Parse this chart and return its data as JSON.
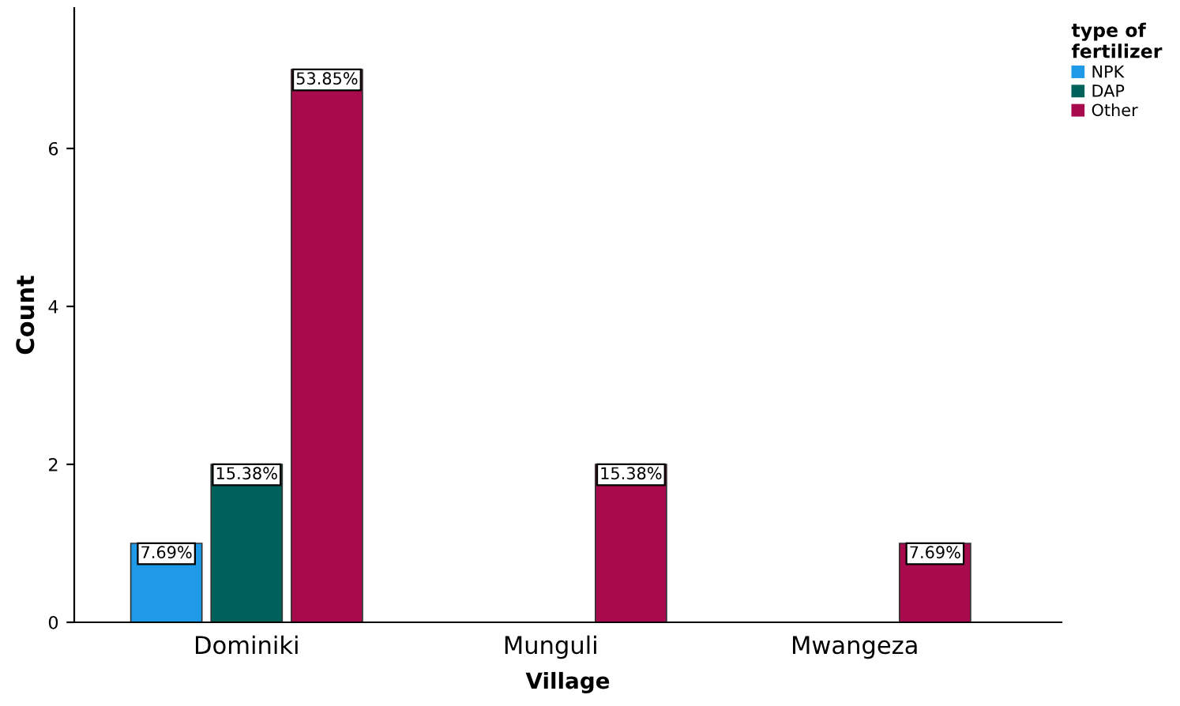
{
  "chart_data": {
    "type": "bar",
    "xlabel": "Village",
    "ylabel": "Count",
    "legend_title": "type of\nfertilizer",
    "categories": [
      "Dominiki",
      "Munguli",
      "Mwangeza"
    ],
    "series": [
      {
        "name": "NPK",
        "color": "#1f9ae8",
        "values": [
          1,
          null,
          null
        ]
      },
      {
        "name": "DAP",
        "color": "#00605a",
        "values": [
          2,
          null,
          null
        ]
      },
      {
        "name": "Other",
        "color": "#a70b4c",
        "values": [
          7,
          2,
          1
        ]
      }
    ],
    "annotations": [
      "7.69%",
      "15.38%",
      "53.85%",
      "15.38%",
      "7.69%"
    ],
    "ylim": [
      0,
      7.78
    ],
    "yticks": [
      0,
      2,
      4,
      6
    ],
    "grid": false,
    "legend": "top right"
  }
}
